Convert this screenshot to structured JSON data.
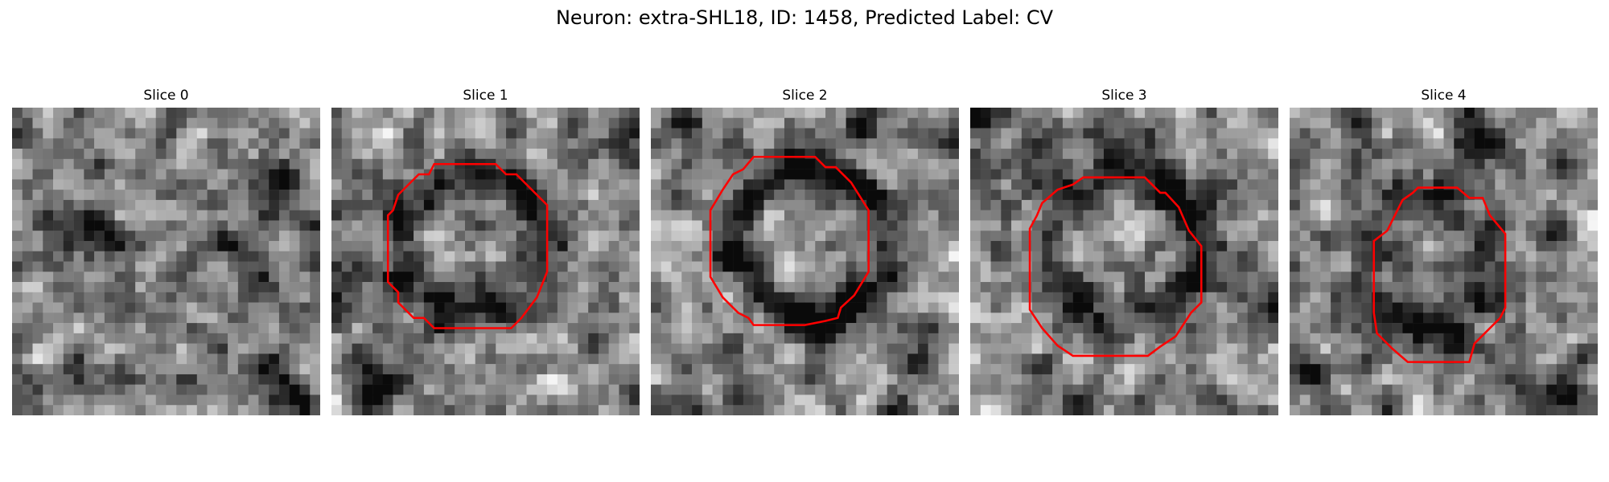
{
  "figure": {
    "title": "Neuron: extra-SHL18, ID: 1458, Predicted Label: CV"
  },
  "panels": [
    {
      "title": "Slice 0",
      "contour": false
    },
    {
      "title": "Slice 1",
      "contour": true
    },
    {
      "title": "Slice 2",
      "contour": true
    },
    {
      "title": "Slice 3",
      "contour": true
    },
    {
      "title": "Slice 4",
      "contour": true
    }
  ],
  "colors": {
    "contour": "#ff0000",
    "background": "#ffffff"
  }
}
